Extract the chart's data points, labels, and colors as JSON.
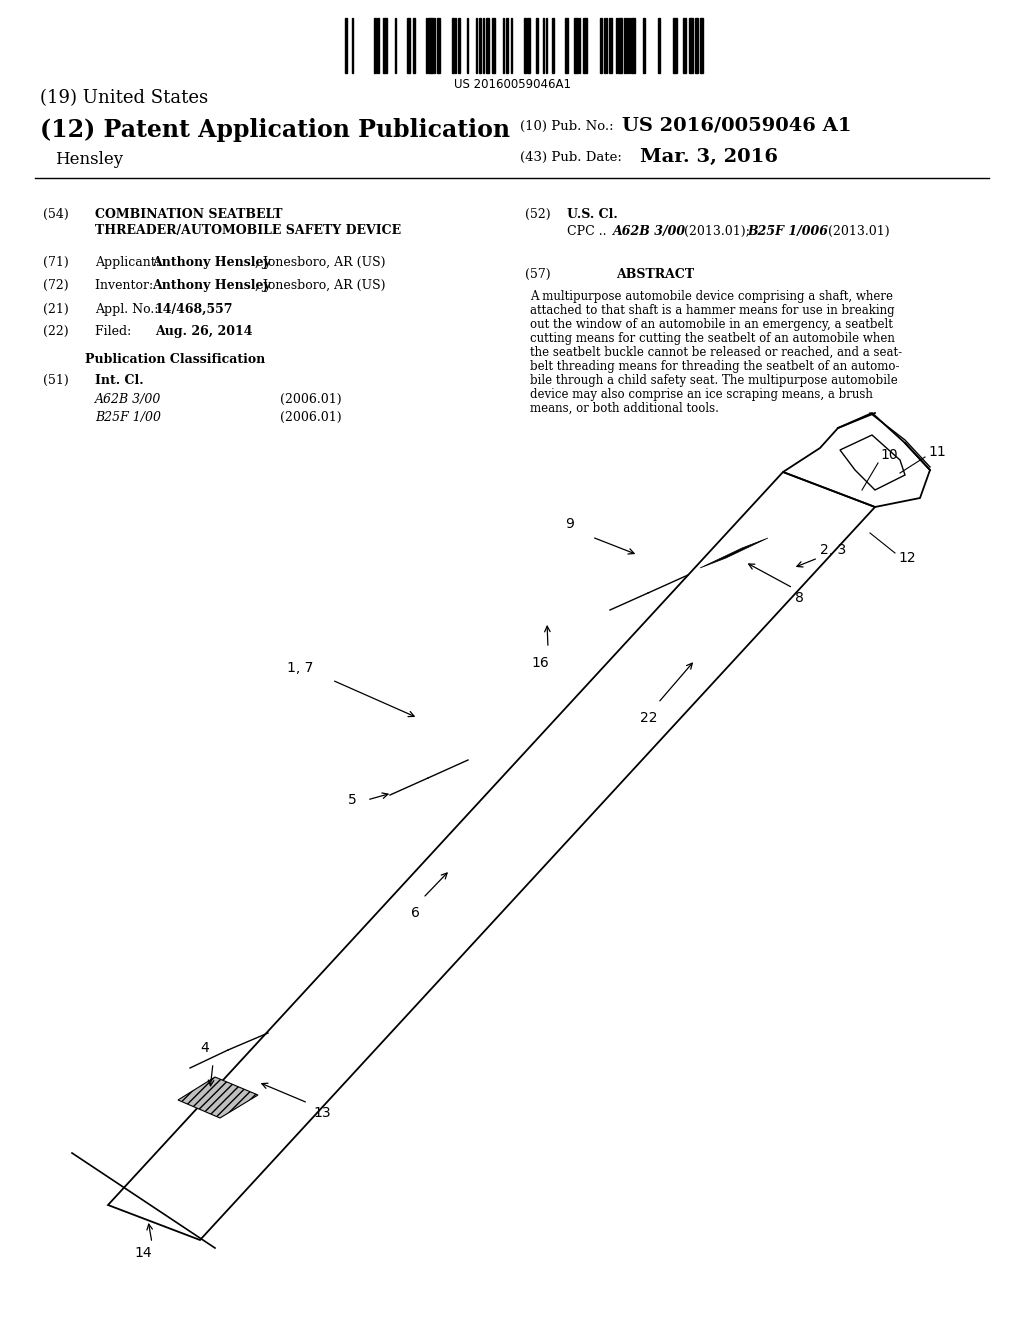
{
  "background_color": "#ffffff",
  "barcode_text": "US 20160059046A1",
  "title_19": "(19) United States",
  "title_12": "(12) Patent Application Publication",
  "pub_no_label": "(10) Pub. No.:",
  "pub_no_value": "US 2016/0059046 A1",
  "inventor_last": "Hensley",
  "pub_date_label": "(43) Pub. Date:",
  "pub_date_value": "Mar. 3, 2016",
  "field_54_text1": "COMBINATION SEATBELT",
  "field_54_text2": "THREADER/AUTOMOBILE SAFETY DEVICE",
  "appl_no": "14/468,557",
  "filed_date": "Aug. 26, 2014",
  "pub_class_title": "Publication Classification",
  "int_cl_class1": "A62B 3/00",
  "int_cl_date1": "(2006.01)",
  "int_cl_class2": "B25F 1/00",
  "int_cl_date2": "(2006.01)",
  "abstract_lines": [
    "A multipurpose automobile device comprising a shaft, where",
    "attached to that shaft is a hammer means for use in breaking",
    "out the window of an automobile in an emergency, a seatbelt",
    "cutting means for cutting the seatbelt of an automobile when",
    "the seatbelt buckle cannot be released or reached, and a seat-",
    "belt threading means for threading the seatbelt of an automo-",
    "bile through a child safety seat. The multipurpose automobile",
    "device may also comprise an ice scraping means, a brush",
    "means, or both additional tools."
  ]
}
